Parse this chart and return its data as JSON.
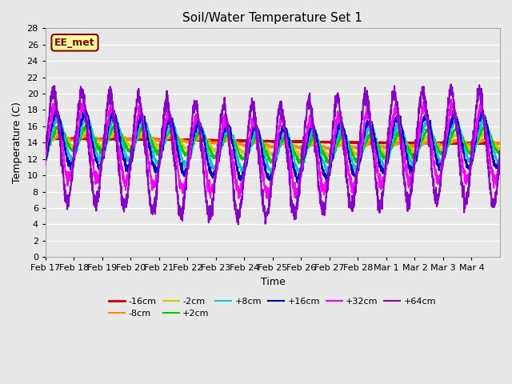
{
  "title": "Soil/Water Temperature Set 1",
  "xlabel": "Time",
  "ylabel": "Temperature (C)",
  "ylim": [
    0,
    28
  ],
  "yticks": [
    0,
    2,
    4,
    6,
    8,
    10,
    12,
    14,
    16,
    18,
    20,
    22,
    24,
    26,
    28
  ],
  "background_color": "#e8e8e8",
  "grid_color": "#ffffff",
  "date_labels": [
    "Feb 17",
    "Feb 18",
    "Feb 19",
    "Feb 20",
    "Feb 21",
    "Feb 22",
    "Feb 23",
    "Feb 24",
    "Feb 25",
    "Feb 26",
    "Feb 27",
    "Feb 28",
    "Mar 1",
    "Mar 2",
    "Mar 3",
    "Mar 4"
  ],
  "series_colors": {
    "-16cm": "#cc0000",
    "-8cm": "#ff8800",
    "-2cm": "#cccc00",
    "+2cm": "#00cc00",
    "+8cm": "#00cccc",
    "+16cm": "#0000cc",
    "+32cm": "#ff00ff",
    "+64cm": "#8800cc"
  },
  "annotation_text": "EE_met",
  "annotation_bbox": {
    "facecolor": "#ffff99",
    "edgecolor": "#8B0000",
    "linewidth": 1.5
  }
}
